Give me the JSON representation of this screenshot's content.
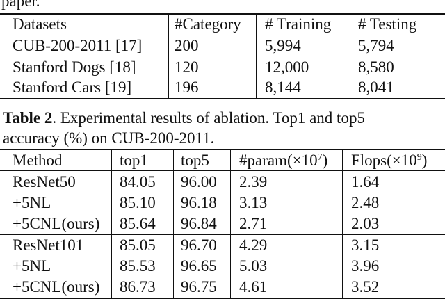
{
  "top_fragment": "paper.",
  "table1": {
    "headers": [
      "Datasets",
      "#Category",
      "# Training",
      "# Testing"
    ],
    "rows": [
      [
        "CUB-200-2011 [17]",
        "200",
        "5,994",
        "5,794"
      ],
      [
        "Stanford Dogs [18]",
        "120",
        "12,000",
        "8,580"
      ],
      [
        "Stanford Cars [19]",
        "196",
        "8,144",
        "8,041"
      ]
    ]
  },
  "caption": {
    "label": "Table 2",
    "line1_rest": ".  Experimental results of ablation.  Top1 and top5",
    "line2": "accuracy (%) on CUB-200-2011."
  },
  "table2": {
    "headers": {
      "method": "Method",
      "top1": "top1",
      "top5": "top5",
      "param_prefix": "#param(×10",
      "param_exp": "7",
      "param_suffix": ")",
      "flops_prefix": "Flops(×10",
      "flops_exp": "9",
      "flops_suffix": ")"
    },
    "group1": [
      [
        "ResNet50",
        "84.05",
        "96.00",
        "2.39",
        "1.64"
      ],
      [
        "+5NL",
        "85.10",
        "96.18",
        "3.13",
        "2.48"
      ],
      [
        "+5CNL(ours)",
        "85.64",
        "96.84",
        "2.71",
        "2.03"
      ]
    ],
    "group2": [
      [
        "ResNet101",
        "85.05",
        "96.70",
        "4.29",
        "3.15"
      ],
      [
        "+5NL",
        "85.53",
        "96.65",
        "5.03",
        "3.96"
      ],
      [
        "+5CNL(ours)",
        "86.73",
        "96.75",
        "4.61",
        "3.52"
      ]
    ]
  }
}
